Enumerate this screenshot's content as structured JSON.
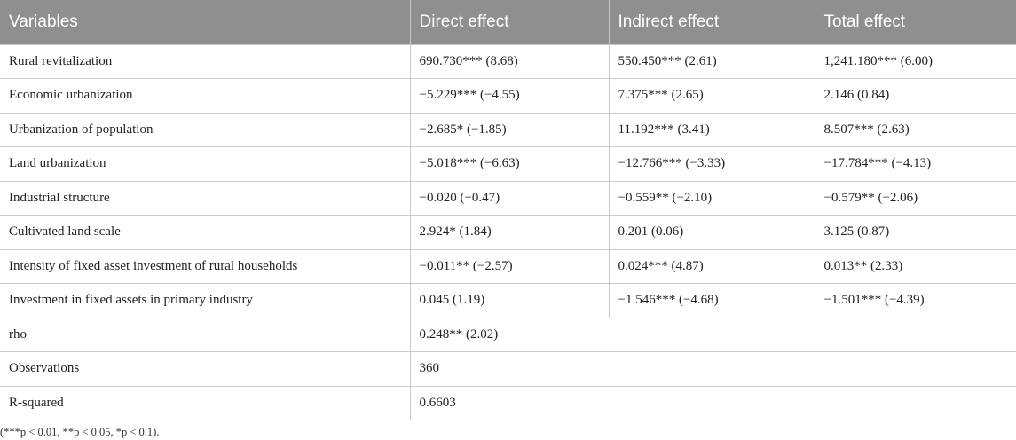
{
  "table": {
    "headers": [
      "Variables",
      "Direct effect",
      "Indirect effect",
      "Total effect"
    ],
    "rows": [
      [
        "Rural revitalization",
        "690.730*** (8.68)",
        "550.450*** (2.61)",
        "1,241.180*** (6.00)"
      ],
      [
        "Economic urbanization",
        "−5.229*** (−4.55)",
        "7.375*** (2.65)",
        "2.146 (0.84)"
      ],
      [
        "Urbanization of population",
        "−2.685* (−1.85)",
        "11.192*** (3.41)",
        "8.507*** (2.63)"
      ],
      [
        "Land urbanization",
        "−5.018*** (−6.63)",
        "−12.766*** (−3.33)",
        "−17.784*** (−4.13)"
      ],
      [
        "Industrial structure",
        "−0.020 (−0.47)",
        "−0.559** (−2.10)",
        "−0.579** (−2.06)"
      ],
      [
        "Cultivated land scale",
        "2.924* (1.84)",
        "0.201 (0.06)",
        "3.125 (0.87)"
      ],
      [
        "Intensity of fixed asset investment of rural households",
        "−0.011** (−2.57)",
        "0.024*** (4.87)",
        "0.013** (2.33)"
      ],
      [
        "Investment in fixed assets in primary industry",
        "0.045 (1.19)",
        "−1.546*** (−4.68)",
        "−1.501*** (−4.39)"
      ]
    ],
    "summary_rows": [
      [
        "rho",
        "0.248** (2.02)"
      ],
      [
        "Observations",
        "360"
      ],
      [
        "R-squared",
        "0.6603"
      ]
    ]
  },
  "note": "(***p < 0.01, **p < 0.05, *p < 0.1)."
}
